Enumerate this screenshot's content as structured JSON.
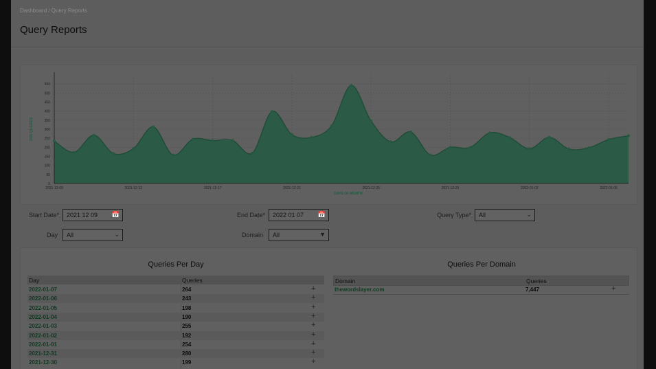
{
  "breadcrumb": "Dashboard / Query Reports",
  "page_title": "Query Reports",
  "chart_data": {
    "type": "area",
    "ylabel": "DNS QUERIES",
    "xlabel": "DAYS OF MONTH",
    "ylim": [
      0,
      600
    ],
    "yticks": [
      0,
      50,
      100,
      150,
      200,
      250,
      300,
      350,
      400,
      450,
      500,
      550
    ],
    "xtick_labels": [
      "2021-12-09",
      "2021-12-13",
      "2021-12-17",
      "2021-12-21",
      "2021-12-25",
      "2021-12-29",
      "2022-01-02",
      "2022-01-06"
    ],
    "series": [
      {
        "x": [
          "2021-12-09",
          "2021-12-10",
          "2021-12-11",
          "2021-12-12",
          "2021-12-13",
          "2021-12-14",
          "2021-12-15",
          "2021-12-16",
          "2021-12-17",
          "2021-12-18",
          "2021-12-19",
          "2021-12-20",
          "2021-12-21",
          "2021-12-22",
          "2021-12-23",
          "2021-12-24",
          "2021-12-25",
          "2021-12-26",
          "2021-12-27",
          "2021-12-28",
          "2021-12-29",
          "2021-12-30",
          "2021-12-31",
          "2022-01-01",
          "2022-01-02",
          "2022-01-03",
          "2022-01-04",
          "2022-01-05",
          "2022-01-06",
          "2022-01-07"
        ],
        "values": [
          235,
          172,
          267,
          165,
          193,
          313,
          157,
          245,
          237,
          238,
          168,
          398,
          270,
          255,
          318,
          542,
          345,
          230,
          285,
          157,
          200,
          199,
          280,
          254,
          192,
          255,
          190,
          198,
          243,
          264
        ]
      }
    ],
    "colors": {
      "fill": "#2b5a47",
      "line": "#1e4a36",
      "marker": "#245a40"
    }
  },
  "filters": {
    "start_date_label": "Start Date*",
    "start_date_value": "2021 12 09",
    "end_date_label": "End Date*",
    "end_date_value": "2022 01 07",
    "query_type_label": "Query Type*",
    "query_type_value": "All",
    "day_label": "Day",
    "day_value": "All",
    "domain_label": "Domain",
    "domain_value": "All"
  },
  "per_day": {
    "title": "Queries Per Day",
    "headers": [
      "Day",
      "Queries"
    ],
    "rows": [
      {
        "day": "2022-01-07",
        "queries": "264"
      },
      {
        "day": "2022-01-06",
        "queries": "243"
      },
      {
        "day": "2022-01-05",
        "queries": "198"
      },
      {
        "day": "2022-01-04",
        "queries": "190"
      },
      {
        "day": "2022-01-03",
        "queries": "255"
      },
      {
        "day": "2022-01-02",
        "queries": "192"
      },
      {
        "day": "2022-01-01",
        "queries": "254"
      },
      {
        "day": "2021-12-31",
        "queries": "280"
      },
      {
        "day": "2021-12-30",
        "queries": "199"
      }
    ]
  },
  "per_domain": {
    "title": "Queries Per Domain",
    "headers": [
      "Domain",
      "Queries"
    ],
    "rows": [
      {
        "domain": "thewordslayer.com",
        "queries": "7,447"
      }
    ]
  },
  "icons": {
    "calendar": "calendar-icon",
    "expand": "plus-icon",
    "dropdown": "chevron-down-icon"
  }
}
